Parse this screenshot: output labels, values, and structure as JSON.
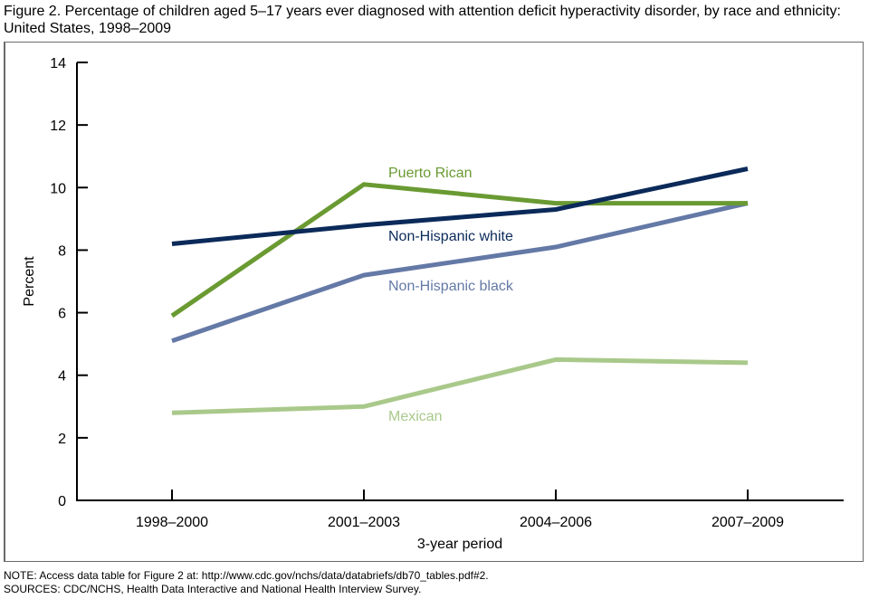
{
  "title": "Figure 2. Percentage of children aged 5–17 years ever diagnosed with attention deficit hyperactivity disorder, by race and ethnicity: United States, 1998–2009",
  "notes": [
    "NOTE: Access data table for Figure 2 at: http://www.cdc.gov/nchs/data/databriefs/db70_tables.pdf#2.",
    "SOURCES: CDC/NCHS, Health Data Interactive and National Health Interview Survey."
  ],
  "chart_data": {
    "type": "line",
    "title": "Percentage of children aged 5–17 years ever diagnosed with attention deficit hyperactivity disorder, by race and ethnicity: United States, 1998–2009",
    "xlabel": "3-year period",
    "ylabel": "Percent",
    "categories": [
      "1998–2000",
      "2001–2003",
      "2004–2006",
      "2007–2009"
    ],
    "ylim": [
      0,
      14
    ],
    "yticks": [
      0,
      2,
      4,
      6,
      8,
      10,
      12,
      14
    ],
    "grid": false,
    "legend": "inline labels",
    "series": [
      {
        "name": "Puerto Rican",
        "color": "#6a9a32",
        "values": [
          5.9,
          10.1,
          9.5,
          9.5
        ],
        "label_anchor": "near 2001–2003, above line"
      },
      {
        "name": "Non-Hispanic white",
        "color": "#0b2a5a",
        "values": [
          8.2,
          8.8,
          9.3,
          10.6
        ],
        "label_anchor": "near 2001–2003, below line"
      },
      {
        "name": "Non-Hispanic black",
        "color": "#6479a6",
        "values": [
          5.1,
          7.2,
          8.1,
          9.5
        ],
        "label_anchor": "near 2001–2003, below line"
      },
      {
        "name": "Mexican",
        "color": "#a9c98b",
        "values": [
          2.8,
          3.0,
          4.5,
          4.4
        ],
        "label_anchor": "near 2001–2003, below line"
      }
    ]
  }
}
